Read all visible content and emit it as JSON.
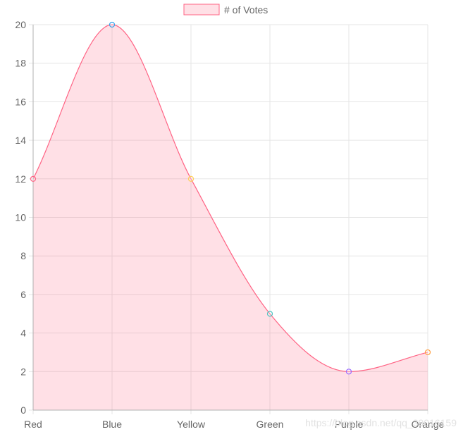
{
  "chart_data": {
    "type": "area",
    "categories": [
      "Red",
      "Blue",
      "Yellow",
      "Green",
      "Purple",
      "Orange"
    ],
    "series": [
      {
        "name": "# of Votes",
        "values": [
          12,
          20,
          12,
          5,
          2,
          3
        ],
        "line_color": "#ff6384",
        "fill_color": "rgba(255, 99, 132, 0.2)",
        "point_colors": [
          "#ff6384",
          "#36a2eb",
          "#ffce56",
          "#4bc0c0",
          "#9966ff",
          "#ff9f40"
        ]
      }
    ],
    "yticks": [
      0,
      2,
      4,
      6,
      8,
      10,
      12,
      14,
      16,
      18,
      20
    ],
    "ylim": [
      0,
      20
    ],
    "grid": true,
    "legend": "top-center"
  },
  "watermark": "https://blog.csdn.net/qq_39016159",
  "colors": {
    "grid": "#e5e5e5",
    "axis": "#b0b0b0",
    "tick_text": "#666666"
  }
}
